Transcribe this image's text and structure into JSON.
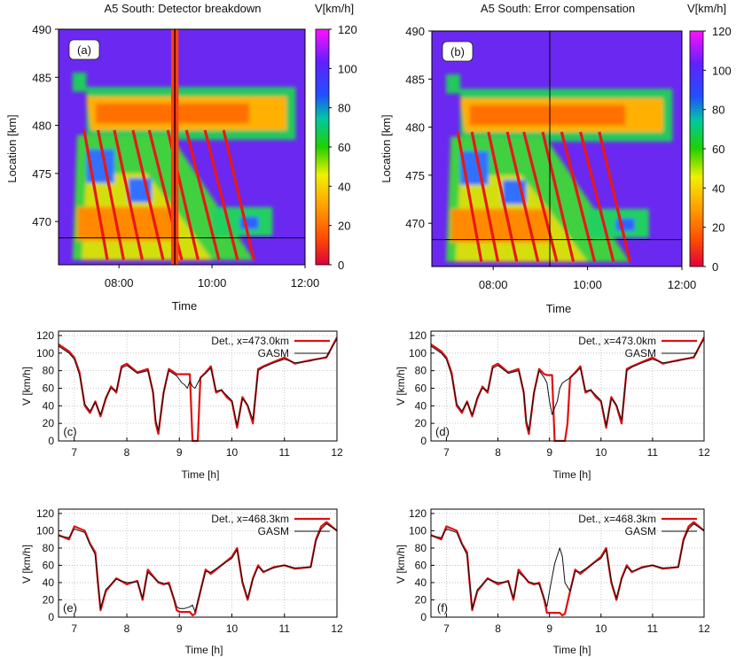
{
  "chart_data": [
    {
      "type": "heatmap",
      "panel": "(a)",
      "title": "A5 South: Detector breakdown",
      "xlabel": "Time",
      "ylabel": "Location [km]",
      "colorbar_label": "V[km/h]",
      "xlim": [
        6.7,
        12.0
      ],
      "ylim": [
        465.5,
        490
      ],
      "xticks": [
        {
          "value": 8,
          "label": "08:00"
        },
        {
          "value": 10,
          "label": "10:00"
        },
        {
          "value": 12,
          "label": "12:00"
        }
      ],
      "yticks": [
        470,
        475,
        480,
        485,
        490
      ],
      "colorbar_ticks": [
        0,
        20,
        40,
        60,
        80,
        100,
        120
      ],
      "crosshair": {
        "time": 9.2,
        "location": 468.3
      },
      "failed_detector_stripe": true
    },
    {
      "type": "heatmap",
      "panel": "(b)",
      "title": "A5 South: Error compensation",
      "xlabel": "Time",
      "ylabel": "Location [km]",
      "colorbar_label": "V[km/h]",
      "xlim": [
        6.7,
        12.0
      ],
      "ylim": [
        465.5,
        490
      ],
      "xticks": [
        {
          "value": 8,
          "label": "08:00"
        },
        {
          "value": 10,
          "label": "10:00"
        },
        {
          "value": 12,
          "label": "12:00"
        }
      ],
      "yticks": [
        470,
        475,
        480,
        485,
        490
      ],
      "colorbar_ticks": [
        0,
        20,
        40,
        60,
        80,
        100,
        120
      ],
      "crosshair": {
        "time": 9.2,
        "location": 468.3
      },
      "failed_detector_stripe": false
    },
    {
      "type": "line",
      "panel": "(c)",
      "xlabel": "Time [h]",
      "ylabel": "V [km/h]",
      "xlim": [
        6.7,
        12
      ],
      "ylim": [
        0,
        125
      ],
      "xticks": [
        7,
        8,
        9,
        10,
        11,
        12
      ],
      "yticks": [
        0,
        20,
        40,
        60,
        80,
        100,
        120
      ],
      "legend": "top-right",
      "series": [
        {
          "name": "Det., x=473.0km",
          "color": "#e01010",
          "x": [
            6.7,
            6.9,
            7.0,
            7.1,
            7.2,
            7.3,
            7.4,
            7.5,
            7.6,
            7.7,
            7.8,
            7.9,
            8.0,
            8.2,
            8.4,
            8.5,
            8.55,
            8.6,
            8.7,
            8.8,
            8.9,
            8.95,
            9.0,
            9.05,
            9.1,
            9.15,
            9.2,
            9.25,
            9.3,
            9.35,
            9.4,
            9.5,
            9.6,
            9.7,
            9.8,
            9.9,
            10.0,
            10.1,
            10.2,
            10.3,
            10.4,
            10.5,
            10.6,
            10.8,
            11.0,
            11.2,
            11.5,
            11.8,
            12.0
          ],
          "y": [
            110,
            102,
            95,
            78,
            40,
            32,
            45,
            28,
            48,
            62,
            55,
            85,
            88,
            78,
            82,
            55,
            20,
            8,
            55,
            82,
            78,
            76,
            76,
            76,
            76,
            76,
            76,
            0,
            0,
            0,
            72,
            78,
            85,
            55,
            58,
            50,
            45,
            15,
            50,
            40,
            20,
            82,
            85,
            90,
            95,
            88,
            92,
            95,
            118
          ]
        },
        {
          "name": "GASM",
          "color": "#111111",
          "x": [
            6.7,
            6.9,
            7.0,
            7.1,
            7.2,
            7.3,
            7.4,
            7.5,
            7.6,
            7.7,
            7.8,
            7.9,
            8.0,
            8.2,
            8.4,
            8.5,
            8.55,
            8.6,
            8.7,
            8.8,
            8.9,
            8.95,
            9.0,
            9.05,
            9.1,
            9.15,
            9.2,
            9.25,
            9.3,
            9.35,
            9.4,
            9.5,
            9.6,
            9.7,
            9.8,
            9.9,
            10.0,
            10.1,
            10.2,
            10.3,
            10.4,
            10.5,
            10.6,
            10.8,
            11.0,
            11.2,
            11.5,
            11.8,
            12.0
          ],
          "y": [
            108,
            100,
            93,
            75,
            42,
            34,
            44,
            30,
            50,
            60,
            57,
            83,
            86,
            77,
            80,
            57,
            24,
            12,
            55,
            80,
            76,
            74,
            70,
            66,
            64,
            60,
            68,
            62,
            60,
            66,
            72,
            77,
            83,
            57,
            58,
            52,
            46,
            18,
            48,
            41,
            24,
            80,
            84,
            89,
            93,
            89,
            91,
            96,
            116
          ]
        }
      ]
    },
    {
      "type": "line",
      "panel": "(d)",
      "xlabel": "Time [h]",
      "ylabel": "V [km/h]",
      "xlim": [
        6.7,
        12
      ],
      "ylim": [
        0,
        125
      ],
      "xticks": [
        7,
        8,
        9,
        10,
        11,
        12
      ],
      "yticks": [
        0,
        20,
        40,
        60,
        80,
        100,
        120
      ],
      "legend": "top-right",
      "series": [
        {
          "name": "Det., x=473.0km",
          "color": "#e01010",
          "x": [
            6.7,
            6.9,
            7.0,
            7.1,
            7.2,
            7.3,
            7.4,
            7.5,
            7.6,
            7.7,
            7.8,
            7.9,
            8.0,
            8.2,
            8.4,
            8.5,
            8.55,
            8.6,
            8.7,
            8.8,
            8.9,
            8.95,
            9.0,
            9.05,
            9.1,
            9.15,
            9.2,
            9.25,
            9.3,
            9.35,
            9.4,
            9.5,
            9.6,
            9.7,
            9.8,
            9.9,
            10.0,
            10.1,
            10.2,
            10.3,
            10.4,
            10.5,
            10.6,
            10.8,
            11.0,
            11.2,
            11.5,
            11.8,
            12.0
          ],
          "y": [
            110,
            102,
            95,
            78,
            40,
            32,
            45,
            28,
            48,
            62,
            55,
            85,
            88,
            78,
            82,
            55,
            20,
            8,
            55,
            82,
            76,
            75,
            75,
            75,
            0,
            0,
            0,
            0,
            0,
            20,
            72,
            78,
            85,
            55,
            58,
            50,
            45,
            15,
            50,
            40,
            20,
            82,
            85,
            90,
            95,
            88,
            92,
            95,
            118
          ]
        },
        {
          "name": "GASM",
          "color": "#111111",
          "x": [
            6.7,
            6.9,
            7.0,
            7.1,
            7.2,
            7.3,
            7.4,
            7.5,
            7.6,
            7.7,
            7.8,
            7.9,
            8.0,
            8.2,
            8.4,
            8.5,
            8.55,
            8.6,
            8.7,
            8.8,
            8.9,
            8.95,
            9.0,
            9.05,
            9.1,
            9.15,
            9.2,
            9.25,
            9.3,
            9.35,
            9.4,
            9.5,
            9.6,
            9.7,
            9.8,
            9.9,
            10.0,
            10.1,
            10.2,
            10.3,
            10.4,
            10.5,
            10.6,
            10.8,
            11.0,
            11.2,
            11.5,
            11.8,
            12.0
          ],
          "y": [
            108,
            100,
            93,
            75,
            42,
            34,
            44,
            30,
            50,
            60,
            57,
            83,
            86,
            77,
            80,
            57,
            24,
            12,
            55,
            80,
            72,
            66,
            45,
            30,
            38,
            45,
            60,
            66,
            68,
            70,
            72,
            77,
            83,
            57,
            58,
            52,
            46,
            18,
            48,
            41,
            24,
            80,
            84,
            89,
            93,
            89,
            91,
            96,
            116
          ]
        }
      ]
    },
    {
      "type": "line",
      "panel": "(e)",
      "xlabel": "Time [h]",
      "ylabel": "V [km/h]",
      "xlim": [
        6.7,
        12
      ],
      "ylim": [
        0,
        125
      ],
      "xticks": [
        7,
        8,
        9,
        10,
        11,
        12
      ],
      "yticks": [
        0,
        20,
        40,
        60,
        80,
        100,
        120
      ],
      "legend": "top-right",
      "series": [
        {
          "name": "Det., x=468.3km",
          "color": "#e01010",
          "x": [
            6.7,
            6.9,
            7.0,
            7.2,
            7.3,
            7.4,
            7.45,
            7.5,
            7.6,
            7.8,
            8.0,
            8.2,
            8.3,
            8.4,
            8.6,
            8.7,
            8.8,
            8.9,
            8.95,
            9.0,
            9.1,
            9.2,
            9.25,
            9.3,
            9.4,
            9.5,
            9.6,
            9.8,
            10.0,
            10.1,
            10.2,
            10.3,
            10.4,
            10.5,
            10.6,
            10.8,
            11.0,
            11.2,
            11.5,
            11.6,
            11.7,
            11.8,
            12.0
          ],
          "y": [
            95,
            90,
            105,
            100,
            85,
            75,
            40,
            8,
            30,
            45,
            38,
            42,
            20,
            55,
            40,
            38,
            40,
            20,
            8,
            6,
            6,
            6,
            2,
            4,
            30,
            55,
            50,
            60,
            70,
            80,
            40,
            20,
            45,
            60,
            52,
            58,
            60,
            56,
            58,
            90,
            105,
            110,
            100
          ]
        },
        {
          "name": "GASM",
          "color": "#111111",
          "x": [
            6.7,
            6.9,
            7.0,
            7.2,
            7.3,
            7.4,
            7.45,
            7.5,
            7.6,
            7.8,
            8.0,
            8.2,
            8.3,
            8.4,
            8.6,
            8.7,
            8.8,
            8.9,
            8.95,
            9.0,
            9.1,
            9.2,
            9.25,
            9.3,
            9.4,
            9.5,
            9.6,
            9.8,
            10.0,
            10.1,
            10.2,
            10.3,
            10.4,
            10.5,
            10.6,
            10.8,
            11.0,
            11.2,
            11.5,
            11.6,
            11.7,
            11.8,
            12.0
          ],
          "y": [
            94,
            92,
            102,
            98,
            84,
            72,
            42,
            10,
            32,
            44,
            40,
            41,
            22,
            52,
            41,
            39,
            38,
            22,
            12,
            10,
            10,
            12,
            14,
            6,
            30,
            53,
            52,
            60,
            68,
            78,
            42,
            22,
            44,
            58,
            53,
            57,
            60,
            57,
            58,
            88,
            102,
            108,
            100
          ]
        }
      ]
    },
    {
      "type": "line",
      "panel": "(f)",
      "xlabel": "Time [h]",
      "ylabel": "V [km/h]",
      "xlim": [
        6.7,
        12
      ],
      "ylim": [
        0,
        125
      ],
      "xticks": [
        7,
        8,
        9,
        10,
        11,
        12
      ],
      "yticks": [
        0,
        20,
        40,
        60,
        80,
        100,
        120
      ],
      "legend": "top-right",
      "series": [
        {
          "name": "Det., x=468.3km",
          "color": "#e01010",
          "x": [
            6.7,
            6.9,
            7.0,
            7.2,
            7.3,
            7.4,
            7.45,
            7.5,
            7.6,
            7.8,
            8.0,
            8.2,
            8.3,
            8.4,
            8.6,
            8.7,
            8.8,
            8.9,
            8.95,
            9.0,
            9.1,
            9.2,
            9.25,
            9.3,
            9.4,
            9.5,
            9.6,
            9.8,
            10.0,
            10.1,
            10.2,
            10.3,
            10.4,
            10.5,
            10.6,
            10.8,
            11.0,
            11.2,
            11.5,
            11.6,
            11.7,
            11.8,
            12.0
          ],
          "y": [
            95,
            90,
            105,
            100,
            85,
            75,
            40,
            8,
            30,
            45,
            38,
            42,
            20,
            55,
            40,
            38,
            40,
            20,
            5,
            5,
            5,
            5,
            2,
            4,
            30,
            55,
            50,
            60,
            70,
            80,
            40,
            20,
            45,
            60,
            52,
            58,
            60,
            56,
            58,
            90,
            105,
            110,
            100
          ]
        },
        {
          "name": "GASM",
          "color": "#111111",
          "x": [
            6.7,
            6.9,
            7.0,
            7.2,
            7.3,
            7.4,
            7.45,
            7.5,
            7.6,
            7.8,
            8.0,
            8.2,
            8.3,
            8.4,
            8.6,
            8.7,
            8.8,
            8.9,
            8.95,
            9.0,
            9.1,
            9.2,
            9.25,
            9.3,
            9.4,
            9.5,
            9.6,
            9.8,
            10.0,
            10.1,
            10.2,
            10.3,
            10.4,
            10.5,
            10.6,
            10.8,
            11.0,
            11.2,
            11.5,
            11.6,
            11.7,
            11.8,
            12.0
          ],
          "y": [
            94,
            92,
            102,
            98,
            84,
            72,
            42,
            10,
            32,
            44,
            40,
            41,
            22,
            52,
            41,
            39,
            38,
            22,
            12,
            30,
            62,
            80,
            70,
            40,
            30,
            53,
            52,
            60,
            68,
            78,
            42,
            22,
            44,
            58,
            53,
            57,
            60,
            57,
            58,
            88,
            102,
            108,
            100
          ]
        }
      ]
    }
  ]
}
